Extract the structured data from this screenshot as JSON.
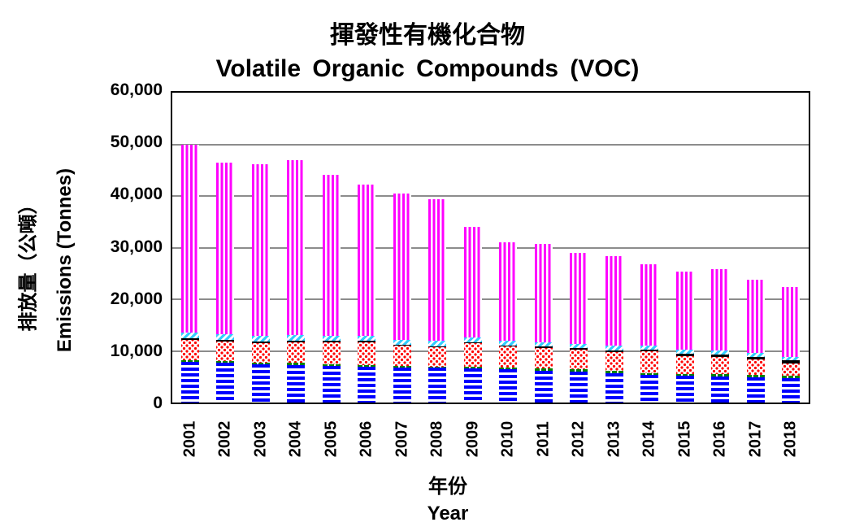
{
  "chart": {
    "title_zh": "揮發性有機化合物",
    "title_en": "Volatile Organic Compounds (VOC)",
    "ylabel_zh": "排放量（公噸）",
    "ylabel_en": "Emissions (Tonnes)",
    "xlabel_zh": "年份",
    "xlabel_en": "Year",
    "yticks": [
      "0",
      "10,000",
      "20,000",
      "30,000",
      "40,000",
      "50,000",
      "60,000"
    ]
  },
  "chart_data": {
    "type": "bar",
    "stacked": true,
    "title": "揮發性有機化合物 Volatile Organic Compounds (VOC)",
    "xlabel": "年份 Year",
    "ylabel": "排放量（公噸） Emissions (Tonnes)",
    "ylim": [
      0,
      60000
    ],
    "ytick_step": 10000,
    "grid": true,
    "legend": "none shown",
    "categories": [
      "2001",
      "2002",
      "2003",
      "2004",
      "2005",
      "2006",
      "2007",
      "2008",
      "2009",
      "2010",
      "2011",
      "2012",
      "2013",
      "2014",
      "2015",
      "2016",
      "2017",
      "2018"
    ],
    "series": [
      {
        "name": "Segment 1 (blue horizontal stripes)",
        "color": "#0000ff",
        "values": [
          7950,
          7700,
          7450,
          7300,
          7150,
          7000,
          6800,
          6700,
          6600,
          6400,
          6200,
          6050,
          5700,
          5300,
          5150,
          5050,
          4950,
          4800
        ]
      },
      {
        "name": "Segment 2 (green)",
        "color": "#008000",
        "values": [
          300,
          300,
          300,
          350,
          300,
          300,
          350,
          300,
          350,
          300,
          350,
          400,
          400,
          400,
          400,
          400,
          400,
          450
        ]
      },
      {
        "name": "Segment 3 (red dots)",
        "color": "#ff0000",
        "values": [
          3900,
          3800,
          3800,
          4000,
          4250,
          4350,
          3800,
          3700,
          4500,
          4100,
          3950,
          3750,
          3650,
          4200,
          3400,
          3400,
          2950,
          2300
        ]
      },
      {
        "name": "Segment 4 (black)",
        "color": "#000000",
        "values": [
          300,
          300,
          300,
          350,
          300,
          300,
          200,
          250,
          250,
          300,
          300,
          300,
          350,
          300,
          450,
          400,
          500,
          600
        ]
      },
      {
        "name": "Segment 5 (cyan hatched)",
        "color": "#33ccff",
        "values": [
          1100,
          1100,
          1000,
          1050,
          1000,
          1000,
          950,
          950,
          950,
          950,
          900,
          900,
          950,
          900,
          850,
          850,
          800,
          750
        ]
      },
      {
        "name": "Segment 6 (magenta vertical stripes)",
        "color": "#ff00ff",
        "values": [
          36450,
          33200,
          33250,
          33850,
          31100,
          29250,
          28400,
          27500,
          21350,
          18950,
          19000,
          17600,
          17250,
          15700,
          15150,
          15800,
          14200,
          13400
        ]
      }
    ],
    "totals": [
      50000,
      46400,
      46100,
      46900,
      44100,
      42200,
      40500,
      39400,
      34000,
      31000,
      30700,
      29000,
      28300,
      26800,
      25400,
      25900,
      23800,
      22300
    ]
  }
}
